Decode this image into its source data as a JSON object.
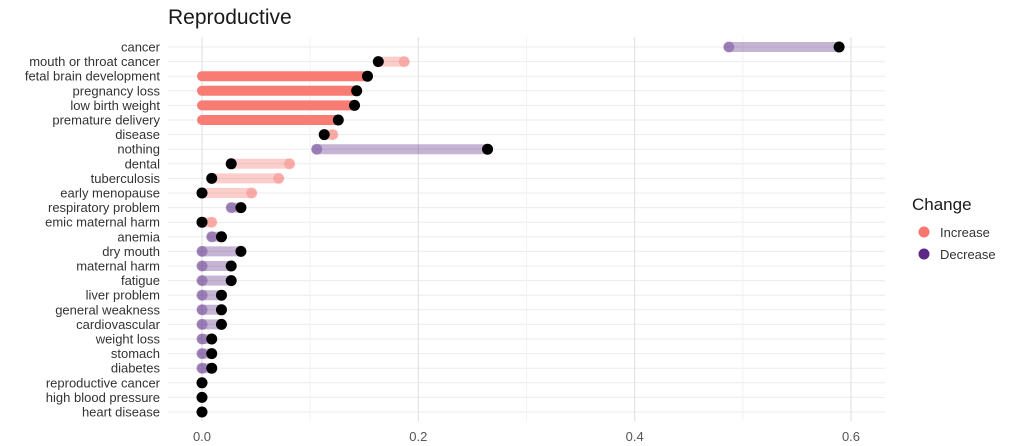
{
  "chart_data": {
    "type": "dumbbell",
    "title": "Reproductive",
    "xlabel": "",
    "ylabel": "",
    "xlim": [
      -0.02,
      0.63
    ],
    "xticks": [
      0.0,
      0.2,
      0.4,
      0.6
    ],
    "xtick_labels": [
      "0.0",
      "0.2",
      "0.4",
      "0.6"
    ],
    "grid": true,
    "legend": {
      "title": "Change",
      "placement": "right",
      "entries": [
        {
          "key": "increase",
          "label": "Increase",
          "color": "#f8766d"
        },
        {
          "key": "decrease",
          "label": "Decrease",
          "color": "#5b2a86"
        }
      ]
    },
    "end_color": "#000000",
    "rows": [
      {
        "label": "cancer",
        "start": 0.487,
        "end": 0.589,
        "change": "decrease",
        "start_dot": true
      },
      {
        "label": "mouth or throat cancer",
        "start": 0.187,
        "end": 0.163,
        "change": "increase",
        "start_dot": true
      },
      {
        "label": "fetal brain development",
        "start": 0.0,
        "end": 0.153,
        "change": "increase",
        "start_dot": false
      },
      {
        "label": "pregnancy loss",
        "start": 0.0,
        "end": 0.143,
        "change": "increase",
        "start_dot": false
      },
      {
        "label": "low birth weight",
        "start": 0.0,
        "end": 0.141,
        "change": "increase",
        "start_dot": false
      },
      {
        "label": "premature delivery",
        "start": 0.0,
        "end": 0.126,
        "change": "increase",
        "start_dot": false
      },
      {
        "label": "disease",
        "start": 0.121,
        "end": 0.113,
        "change": "increase",
        "start_dot": true
      },
      {
        "label": "nothing",
        "start": 0.106,
        "end": 0.264,
        "change": "decrease",
        "start_dot": true
      },
      {
        "label": "dental",
        "start": 0.081,
        "end": 0.027,
        "change": "increase",
        "start_dot": true
      },
      {
        "label": "tuberculosis",
        "start": 0.071,
        "end": 0.009,
        "change": "increase",
        "start_dot": true
      },
      {
        "label": "early menopause",
        "start": 0.046,
        "end": 0.0,
        "change": "increase",
        "start_dot": true
      },
      {
        "label": "respiratory problem",
        "start": 0.027,
        "end": 0.036,
        "change": "decrease",
        "start_dot": true
      },
      {
        "label": "emic maternal harm",
        "start": 0.009,
        "end": 0.0,
        "change": "increase",
        "start_dot": true
      },
      {
        "label": "anemia",
        "start": 0.009,
        "end": 0.018,
        "change": "decrease",
        "start_dot": true
      },
      {
        "label": "dry mouth",
        "start": 0.0,
        "end": 0.036,
        "change": "decrease",
        "start_dot": true
      },
      {
        "label": "maternal harm",
        "start": 0.0,
        "end": 0.027,
        "change": "decrease",
        "start_dot": true
      },
      {
        "label": "fatigue",
        "start": 0.0,
        "end": 0.027,
        "change": "decrease",
        "start_dot": true
      },
      {
        "label": "liver problem",
        "start": 0.0,
        "end": 0.018,
        "change": "decrease",
        "start_dot": true
      },
      {
        "label": "general weakness",
        "start": 0.0,
        "end": 0.018,
        "change": "decrease",
        "start_dot": true
      },
      {
        "label": "cardiovascular",
        "start": 0.0,
        "end": 0.018,
        "change": "decrease",
        "start_dot": true
      },
      {
        "label": "weight loss",
        "start": 0.0,
        "end": 0.009,
        "change": "decrease",
        "start_dot": true
      },
      {
        "label": "stomach",
        "start": 0.0,
        "end": 0.009,
        "change": "decrease",
        "start_dot": true
      },
      {
        "label": "diabetes",
        "start": 0.0,
        "end": 0.009,
        "change": "decrease",
        "start_dot": true
      },
      {
        "label": "reproductive cancer",
        "start": 0.0,
        "end": 0.0,
        "change": "decrease",
        "start_dot": false
      },
      {
        "label": "high blood pressure",
        "start": 0.0,
        "end": 0.0,
        "change": "decrease",
        "start_dot": false
      },
      {
        "label": "heart disease",
        "start": 0.0,
        "end": 0.0,
        "change": "decrease",
        "start_dot": false
      }
    ]
  }
}
